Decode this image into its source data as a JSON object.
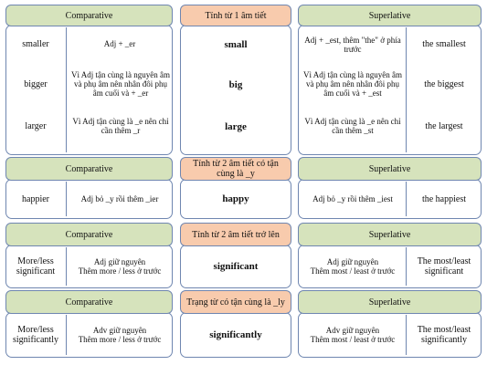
{
  "headers": {
    "comparative": "Comparative",
    "superlative": "Superlative",
    "group1_title": "Tính từ 1 âm tiết",
    "group2_title": "Tính từ 2 âm tiết có tận cùng là _y",
    "group3_title": "Tính từ 2 âm tiết trở lên",
    "group4_title": "Trạng từ có tận cùng là _ly"
  },
  "group1": {
    "rows": [
      {
        "comparative": "smaller",
        "comp_rule": "Adj + _er",
        "adjective": "small",
        "sup_rule": "Adj + _est, thêm \"the\" ở phía trước",
        "superlative": "the smallest"
      },
      {
        "comparative": "bigger",
        "comp_rule": "Vì Adj tận cùng là nguyên âm và phụ âm nên nhân đôi phụ âm cuối và + _er",
        "adjective": "big",
        "sup_rule": "Vì Adj tận cùng là nguyên âm và phụ âm nên nhân đôi phụ âm cuối và + _est",
        "superlative": "the biggest"
      },
      {
        "comparative": "larger",
        "comp_rule": "Vì Adj tận cùng là _e nên chỉ cần thêm _r",
        "adjective": "large",
        "sup_rule": "Vì Adj tận cùng là _e nên chỉ cần thêm _st",
        "superlative": "the largest"
      }
    ]
  },
  "group2": {
    "comparative": "happier",
    "comp_rule": "Adj bỏ _y rồi thêm _ier",
    "adjective": "happy",
    "sup_rule": "Adj bỏ _y rồi thêm _iest",
    "superlative": "the happiest"
  },
  "group3": {
    "comparative": "More/less significant",
    "comp_rule": "Adj giữ nguyên\nThêm more / less ở trước",
    "adjective": "significant",
    "sup_rule": "Adj giữ nguyên\nThêm most / least ở trước",
    "superlative": "The most/least significant"
  },
  "group4": {
    "comparative": "More/less significantly",
    "comp_rule": "Adv giữ nguyên\nThêm more / less ở trước",
    "adjective": "significantly",
    "sup_rule": "Adv giữ nguyên\nThêm most / least ở trước",
    "superlative": "The most/least significantly"
  },
  "colors": {
    "header_green": "#d6e3bc",
    "header_orange": "#f8cbad",
    "border": "#6f86b0"
  }
}
